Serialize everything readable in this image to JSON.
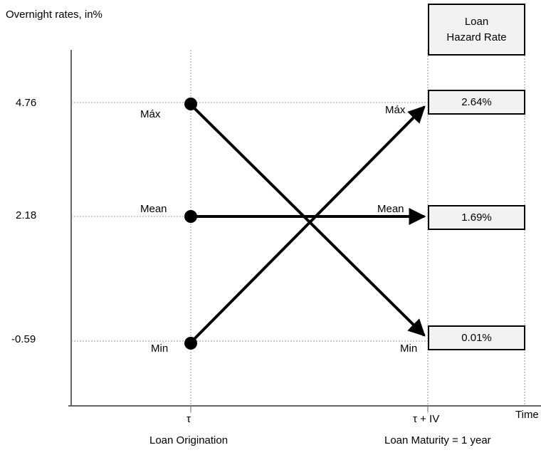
{
  "yaxis": {
    "title": "Overnight rates, in%",
    "ticks": [
      "4.76",
      "2.18",
      "-0.59"
    ]
  },
  "xaxis": {
    "title": "Time",
    "origin_tau": "τ",
    "origin_label": "Loan Origination",
    "maturity_tau": "τ + IV",
    "maturity_label": "Loan Maturity = 1 year"
  },
  "left_labels": {
    "max": "Máx",
    "mean": "Mean",
    "min": "Min"
  },
  "right_labels": {
    "max": "Máx",
    "mean": "Mean",
    "min": "Min"
  },
  "hazard": {
    "title_line1": "Loan",
    "title_line2": "Hazard Rate",
    "max": "2.64%",
    "mean": "1.69%",
    "min": "0.01%"
  },
  "chart_data": {
    "type": "diagram",
    "y_values": {
      "max": 4.76,
      "mean": 2.18,
      "min": -0.59
    },
    "hazard_rates": {
      "max": "2.64%",
      "mean": "1.69%",
      "min": "0.01%"
    },
    "arrows": [
      {
        "from": "origination-max",
        "to": "maturity-min"
      },
      {
        "from": "origination-mean",
        "to": "maturity-mean"
      },
      {
        "from": "origination-min",
        "to": "maturity-max"
      }
    ]
  }
}
